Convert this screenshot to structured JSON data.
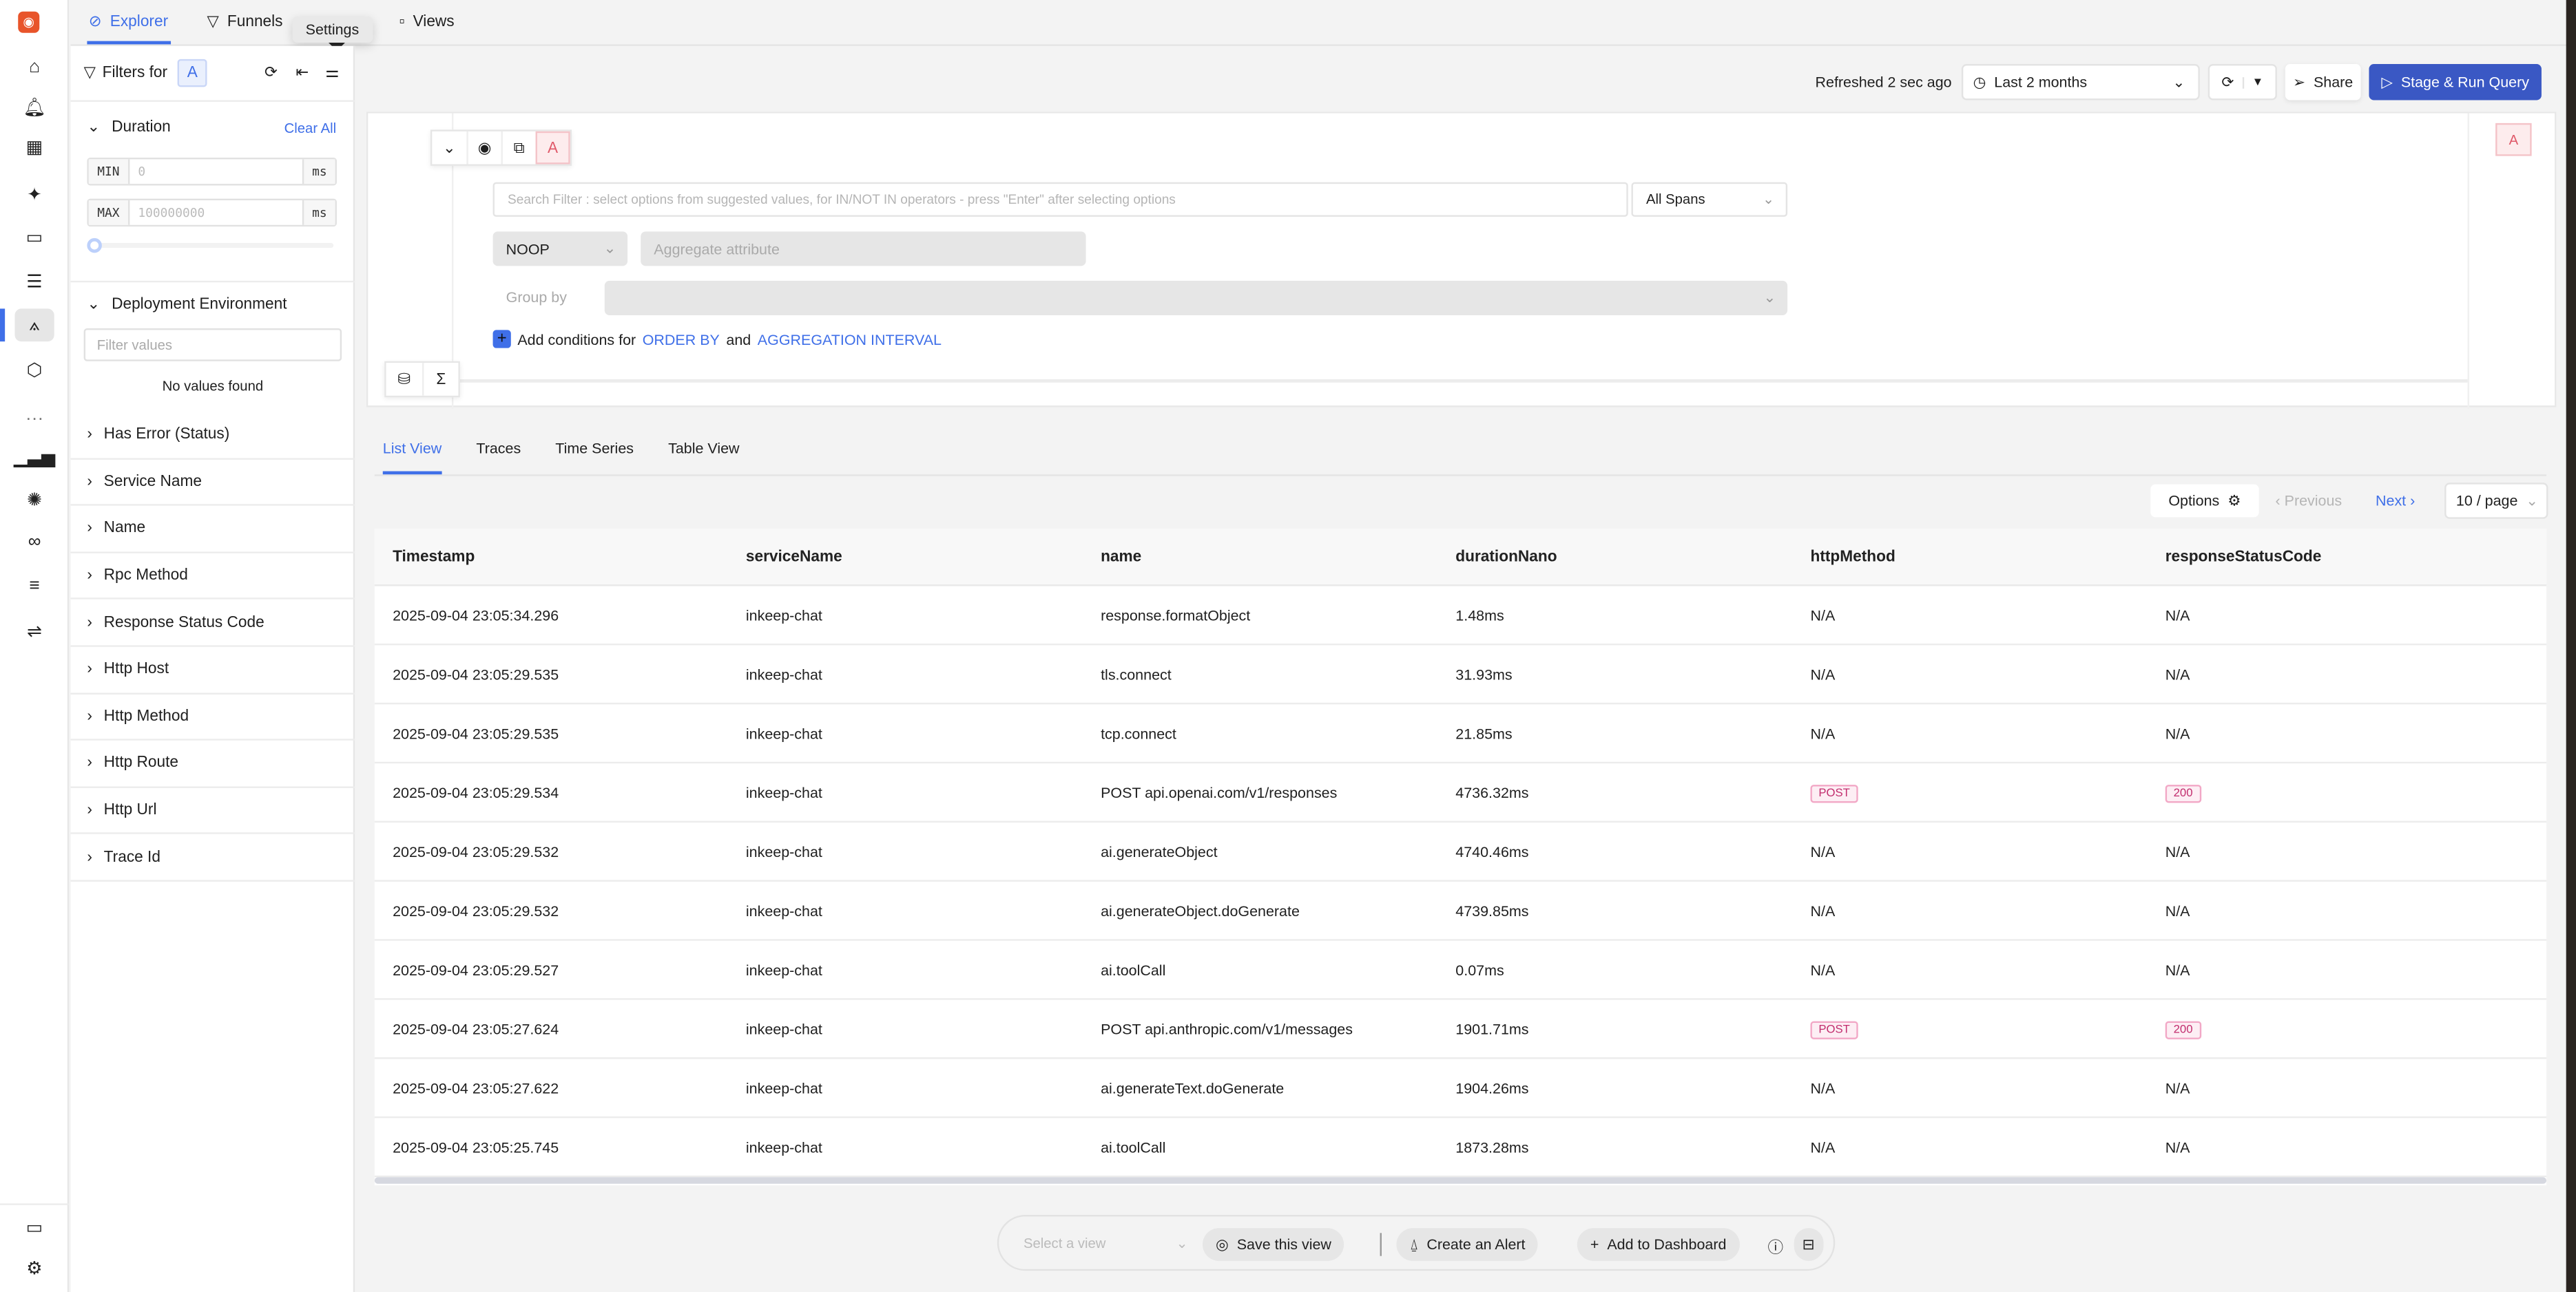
{
  "rail": {
    "items": [
      "home",
      "alerts",
      "dashboards",
      "sparkle",
      "storage",
      "logs",
      "traces",
      "infrastructure",
      "more",
      "metrics",
      "exceptions",
      "explorer",
      "lines",
      "pipelines"
    ],
    "bottom": [
      "messages",
      "settings"
    ]
  },
  "tabs": [
    {
      "label": "Explorer",
      "active": true
    },
    {
      "label": "Funnels"
    },
    {
      "label": "Views"
    }
  ],
  "tooltip": "Settings",
  "filters": {
    "title": "Filters for",
    "query_badge": "A",
    "duration": {
      "label": "Duration",
      "clear": "Clear All",
      "min_label": "MIN",
      "min_placeholder": "0",
      "max_label": "MAX",
      "max_placeholder": "100000000",
      "unit": "ms"
    },
    "deployment": {
      "label": "Deployment Environment",
      "placeholder": "Filter values",
      "empty": "No values found"
    },
    "items": [
      "Has Error (Status)",
      "Service Name",
      "Name",
      "Rpc Method",
      "Response Status Code",
      "Http Host",
      "Http Method",
      "Http Route",
      "Http Url",
      "Trace Id"
    ]
  },
  "toolbar": {
    "refreshed": "Refreshed 2 sec ago",
    "time_range": "Last 2 months",
    "share": "Share",
    "run": "Stage & Run Query"
  },
  "query": {
    "badge": "A",
    "search_placeholder": "Search Filter : select options from suggested values, for IN/NOT IN operators - press \"Enter\" after selecting options",
    "spans": "All Spans",
    "aggregate_op": "NOOP",
    "aggregate_placeholder": "Aggregate attribute",
    "group_by": "Group by",
    "add_text": "Add conditions for",
    "order_by": "ORDER BY",
    "and": "and",
    "agg_interval": "AGGREGATION INTERVAL"
  },
  "view_tabs": [
    {
      "label": "List View",
      "active": true
    },
    {
      "label": "Traces"
    },
    {
      "label": "Time Series"
    },
    {
      "label": "Table View"
    }
  ],
  "pager": {
    "options": "Options",
    "previous": "Previous",
    "next": "Next",
    "page_size": "10 / page"
  },
  "table": {
    "columns": [
      "Timestamp",
      "serviceName",
      "name",
      "durationNano",
      "httpMethod",
      "responseStatusCode"
    ],
    "rows": [
      [
        "2025-09-04 23:05:34.296",
        "inkeep-chat",
        "response.formatObject",
        "1.48ms",
        "N/A",
        "N/A"
      ],
      [
        "2025-09-04 23:05:29.535",
        "inkeep-chat",
        "tls.connect",
        "31.93ms",
        "N/A",
        "N/A"
      ],
      [
        "2025-09-04 23:05:29.535",
        "inkeep-chat",
        "tcp.connect",
        "21.85ms",
        "N/A",
        "N/A"
      ],
      [
        "2025-09-04 23:05:29.534",
        "inkeep-chat",
        "POST api.openai.com/v1/responses",
        "4736.32ms",
        "POST",
        "200"
      ],
      [
        "2025-09-04 23:05:29.532",
        "inkeep-chat",
        "ai.generateObject",
        "4740.46ms",
        "N/A",
        "N/A"
      ],
      [
        "2025-09-04 23:05:29.532",
        "inkeep-chat",
        "ai.generateObject.doGenerate",
        "4739.85ms",
        "N/A",
        "N/A"
      ],
      [
        "2025-09-04 23:05:29.527",
        "inkeep-chat",
        "ai.toolCall",
        "0.07ms",
        "N/A",
        "N/A"
      ],
      [
        "2025-09-04 23:05:27.624",
        "inkeep-chat",
        "POST api.anthropic.com/v1/messages",
        "1901.71ms",
        "POST",
        "200"
      ],
      [
        "2025-09-04 23:05:27.622",
        "inkeep-chat",
        "ai.generateText.doGenerate",
        "1904.26ms",
        "N/A",
        "N/A"
      ],
      [
        "2025-09-04 23:05:25.745",
        "inkeep-chat",
        "ai.toolCall",
        "1873.28ms",
        "N/A",
        "N/A"
      ]
    ]
  },
  "bottom_bar": {
    "select_placeholder": "Select a view",
    "save": "Save this view",
    "alert": "Create an Alert",
    "dashboard": "Add to Dashboard"
  },
  "colors": {
    "accent": "#3f6fe8",
    "run_button": "#3a58c4",
    "logo": "#e8542a",
    "badge_pink": "#c22d6e"
  }
}
